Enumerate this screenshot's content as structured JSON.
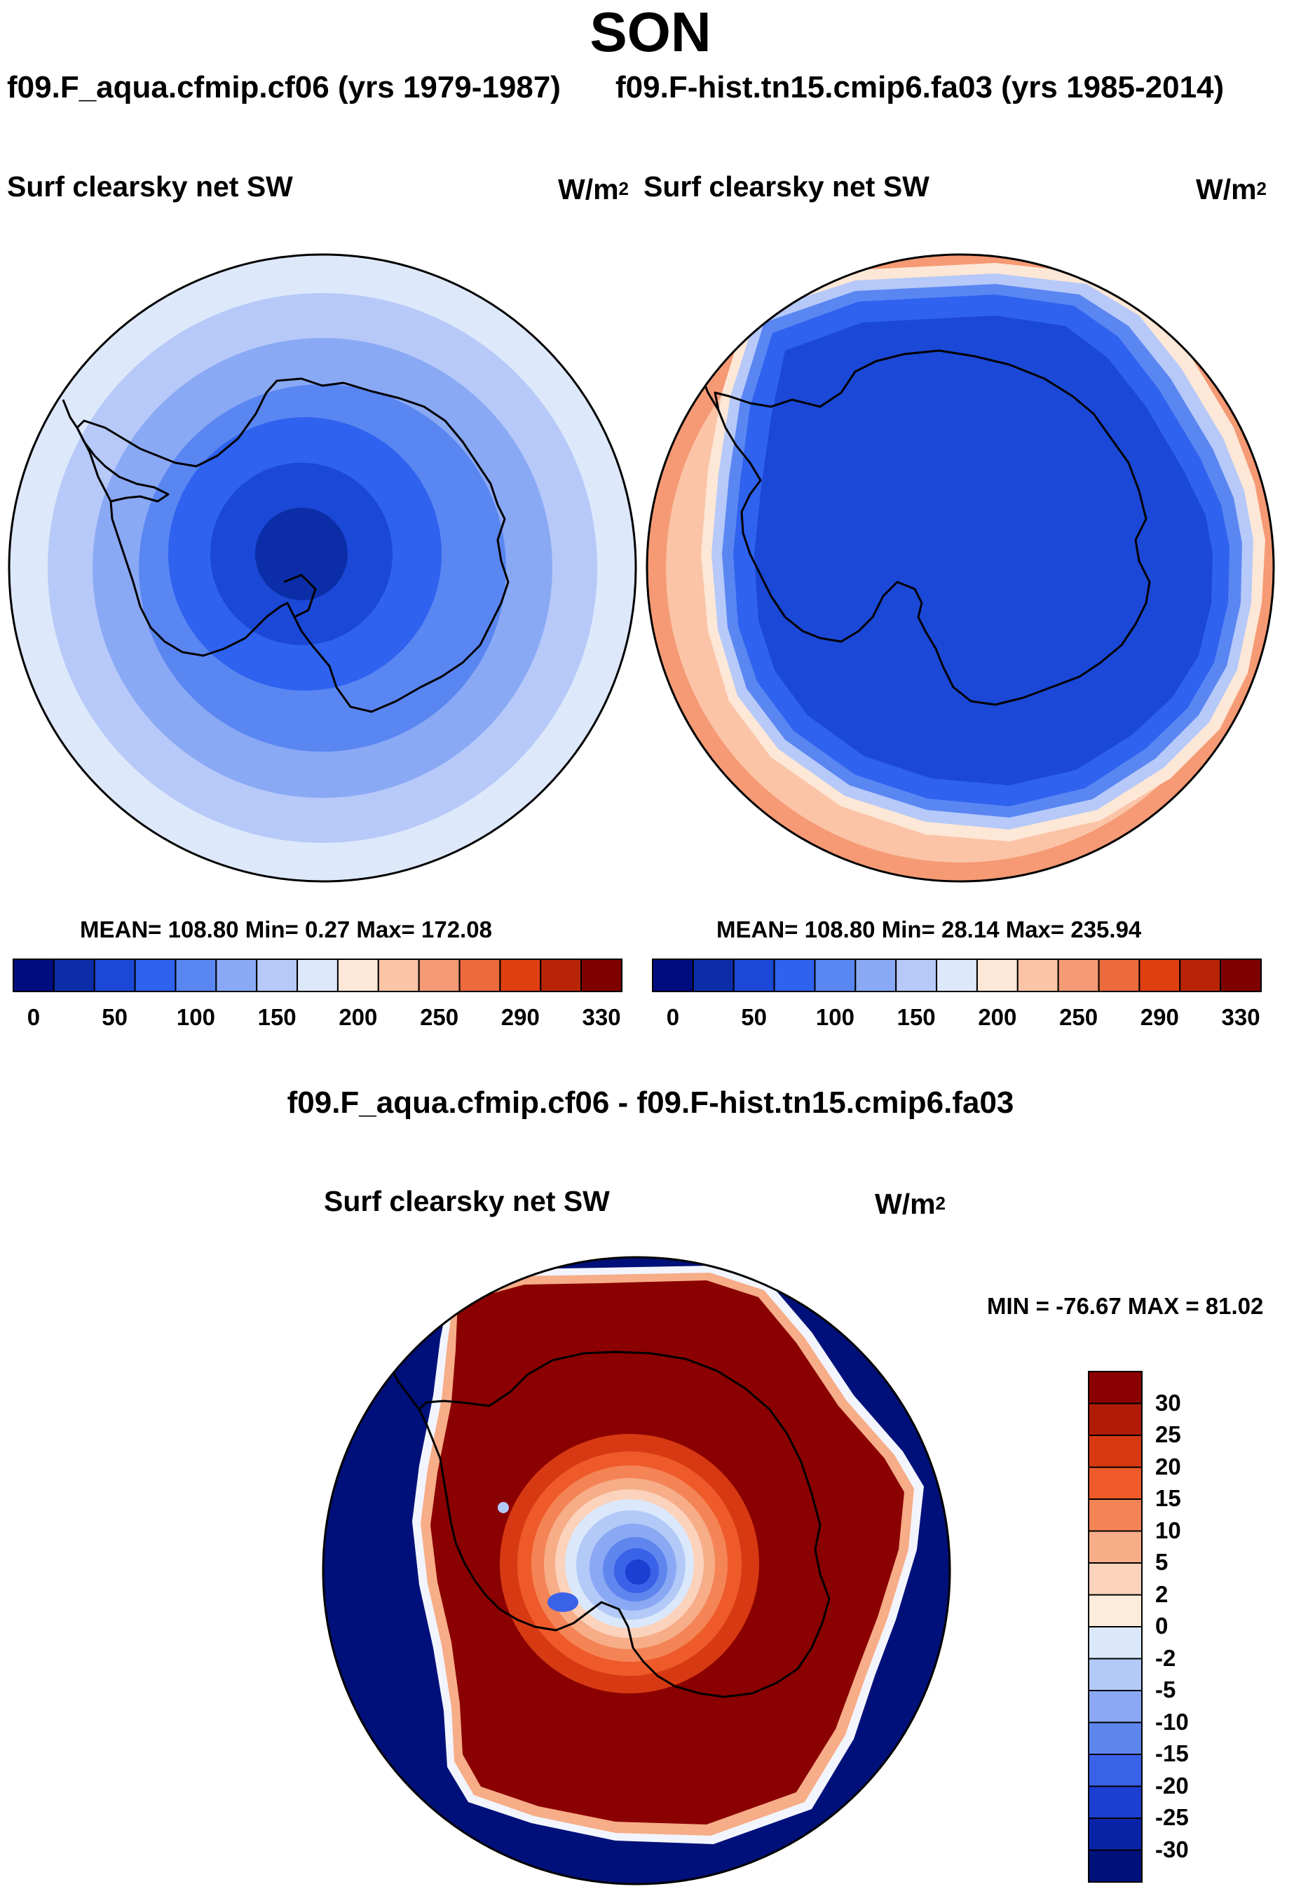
{
  "figure": {
    "season": "SON",
    "left_case": "f09.F_aqua.cfmip.cf06 (yrs 1979-1987)",
    "right_case": "f09.F-hist.tn15.cmip6.fa03 (yrs 1985-2014)",
    "diff_title": "f09.F_aqua.cfmip.cf06 - f09.F-hist.tn15.cmip6.fa03"
  },
  "chart_data": [
    {
      "type": "heatmap",
      "projection": "south polar stereographic",
      "title": "Surf clearsky net SW",
      "units": "W/m",
      "units_exp": "2",
      "stats": {
        "mean": "108.80",
        "min": "0.27",
        "max": "172.08"
      },
      "stats_text": "MEAN= 108.80  Min=   0.27  Max= 172.08",
      "colorbar_levels": [
        "0",
        "50",
        "100",
        "150",
        "200",
        "250",
        "290",
        "330"
      ],
      "colorbar_colors": [
        "#000d80",
        "#0b2ea8",
        "#1b48d6",
        "#2e62ef",
        "#5a86f2",
        "#8aa9f5",
        "#b6c9f8",
        "#dde8fb",
        "#fde7d7",
        "#fbc4a7",
        "#f59a74",
        "#ec6a3c",
        "#e03f12",
        "#b82506",
        "#800000"
      ]
    },
    {
      "type": "heatmap",
      "projection": "south polar stereographic",
      "title": "Surf clearsky net SW",
      "units": "W/m",
      "units_exp": "2",
      "stats": {
        "mean": "108.80",
        "min": "28.14",
        "max": "235.94"
      },
      "stats_text": "MEAN= 108.80  Min=  28.14  Max= 235.94",
      "colorbar_levels": [
        "0",
        "50",
        "100",
        "150",
        "200",
        "250",
        "290",
        "330"
      ],
      "colorbar_colors": [
        "#000d80",
        "#0b2ea8",
        "#1b48d6",
        "#2e62ef",
        "#5a86f2",
        "#8aa9f5",
        "#b6c9f8",
        "#dde8fb",
        "#fde7d7",
        "#fbc4a7",
        "#f59a74",
        "#ec6a3c",
        "#e03f12",
        "#b82506",
        "#800000"
      ]
    },
    {
      "type": "heatmap",
      "projection": "south polar stereographic",
      "title": "Surf clearsky net SW",
      "units": "W/m",
      "units_exp": "2",
      "stats": {
        "min": "-76.67",
        "max": "81.02"
      },
      "stats_text": "MIN = -76.67 MAX =  81.02",
      "colorbar_levels": [
        "30",
        "25",
        "20",
        "15",
        "10",
        "5",
        "2",
        "0",
        "-2",
        "-5",
        "-10",
        "-15",
        "-20",
        "-25",
        "-30"
      ],
      "colorbar_colors": [
        "#8b0000",
        "#b01c08",
        "#d73a12",
        "#ef5a2a",
        "#f48456",
        "#f6ad88",
        "#fbd2bb",
        "#fdecdc",
        "#dbe8fb",
        "#b3c9f7",
        "#8aa8f3",
        "#5e86ee",
        "#3a62e8",
        "#1b3fd0",
        "#0a24a8",
        "#00107a"
      ]
    }
  ]
}
